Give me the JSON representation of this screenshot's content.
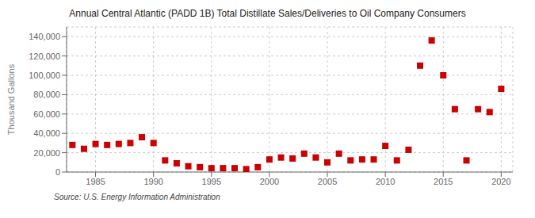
{
  "chart_data": {
    "type": "scatter",
    "title": "Annual Central Atlantic (PADD 1B) Total Distillate Sales/Deliveries to Oil Company Consumers",
    "ylabel": "Thousand Gallons",
    "annotations": [
      "Source: U.S. Energy Information Administration"
    ],
    "x": [
      1983,
      1984,
      1985,
      1986,
      1987,
      1988,
      1989,
      1990,
      1991,
      1992,
      1993,
      1994,
      1995,
      1996,
      1997,
      1998,
      1999,
      2000,
      2001,
      2002,
      2003,
      2004,
      2005,
      2006,
      2007,
      2008,
      2009,
      2010,
      2011,
      2012,
      2013,
      2014,
      2015,
      2016,
      2017,
      2018,
      2019,
      2020
    ],
    "values": [
      28000,
      24000,
      29000,
      28000,
      29000,
      30000,
      36000,
      30000,
      12000,
      9000,
      6000,
      5000,
      4000,
      4000,
      4000,
      3000,
      5000,
      13000,
      15000,
      14000,
      19000,
      15000,
      10000,
      19000,
      12000,
      13000,
      13000,
      27000,
      12000,
      23000,
      110000,
      136000,
      100000,
      65000,
      12000,
      65000,
      62000,
      86000
    ],
    "color": "#cc0000",
    "marker": "square",
    "xlim": [
      1982.5,
      2021
    ],
    "xticks": [
      1985,
      1990,
      1995,
      2000,
      2005,
      2010,
      2015,
      2020
    ],
    "ylim": [
      0,
      150000
    ],
    "yticks": [
      0,
      {
        "value": 20000,
        "label": "20,000"
      },
      {
        "value": 40000,
        "label": "40,000"
      },
      {
        "value": 60000,
        "label": "60,000"
      },
      {
        "value": 80000,
        "label": "80,000"
      },
      {
        "value": 100000,
        "label": "100,000"
      },
      {
        "value": 120000,
        "label": "120,000"
      },
      {
        "value": 140000,
        "label": "140,000"
      }
    ],
    "grid": true
  }
}
